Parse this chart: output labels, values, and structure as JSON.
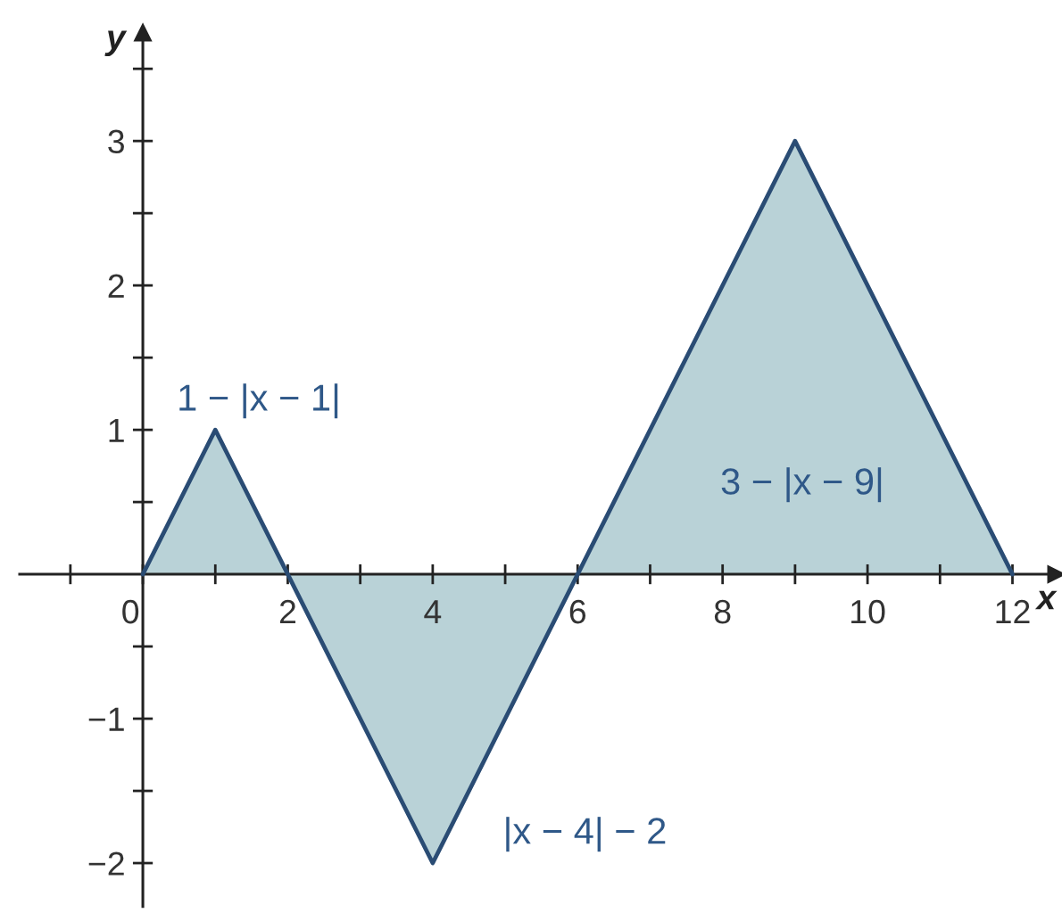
{
  "chart_data": {
    "type": "area",
    "xlabel": "x",
    "ylabel": "y",
    "x": [
      0,
      1,
      2,
      4,
      6,
      9,
      12
    ],
    "series": [
      {
        "color": "#b9d2d7",
        "values": [
          0,
          1,
          0,
          -2,
          0,
          3,
          0
        ]
      }
    ],
    "xlim": [
      -1.7,
      12.6
    ],
    "ylim": [
      -2.3,
      3.75
    ],
    "xticks": [
      {
        "value": -1,
        "label": null
      },
      {
        "value": 0,
        "label": "0"
      },
      {
        "value": 1,
        "label": null
      },
      2,
      {
        "value": 3,
        "label": null
      },
      4,
      {
        "value": 5,
        "label": null
      },
      6,
      {
        "value": 7,
        "label": null
      },
      8,
      {
        "value": 9,
        "label": null
      },
      10,
      {
        "value": 11,
        "label": null
      },
      12
    ],
    "yticks": [
      {
        "value": -2,
        "label": "−2"
      },
      {
        "value": -1.5,
        "label": null
      },
      {
        "value": -1,
        "label": "−1"
      },
      {
        "value": -0.5,
        "label": null
      },
      {
        "value": 0.5,
        "label": null
      },
      1,
      {
        "value": 1.5,
        "label": null
      },
      2,
      {
        "value": 2.5,
        "label": null
      },
      3,
      {
        "value": 3.5,
        "label": null
      }
    ],
    "grid": false,
    "annotations": [
      "1 − |x − 1|",
      "|x − 4| − 2",
      "3 − |x − 9|"
    ]
  }
}
